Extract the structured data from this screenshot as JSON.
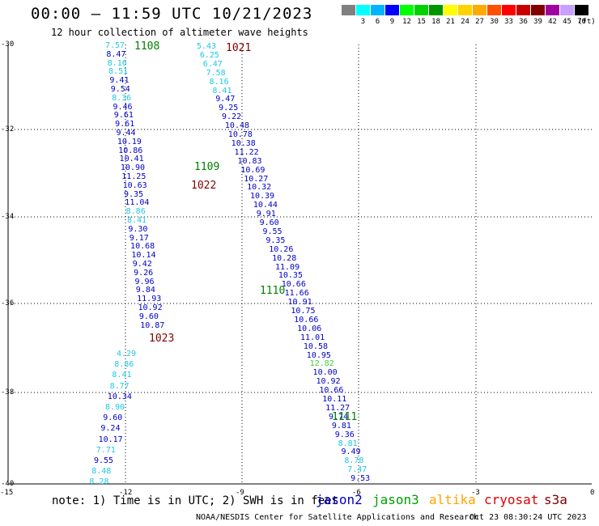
{
  "header": {
    "title": "00:00 – 11:59 UTC 10/21/2023",
    "subtitle": "12 hour collection of altimeter wave heights"
  },
  "legend": {
    "units": "(ft)",
    "bins": [
      {
        "label": "",
        "color": "#808080"
      },
      {
        "label": "3",
        "color": "#00FFFF"
      },
      {
        "label": "6",
        "color": "#00B4FF"
      },
      {
        "label": "9",
        "color": "#0000FF"
      },
      {
        "label": "12",
        "color": "#00FF00"
      },
      {
        "label": "15",
        "color": "#00D200"
      },
      {
        "label": "18",
        "color": "#009600"
      },
      {
        "label": "21",
        "color": "#FFFF00"
      },
      {
        "label": "24",
        "color": "#FFD200"
      },
      {
        "label": "27",
        "color": "#FFAA00"
      },
      {
        "label": "30",
        "color": "#FF5000"
      },
      {
        "label": "33",
        "color": "#FF0000"
      },
      {
        "label": "36",
        "color": "#C80000"
      },
      {
        "label": "39",
        "color": "#800000"
      },
      {
        "label": "42",
        "color": "#A000A0"
      },
      {
        "label": "45",
        "color": "#C8A0FF"
      },
      {
        "label": "70",
        "color": "#000000"
      }
    ]
  },
  "axes": {
    "lat": [
      "-30",
      "-32",
      "-34",
      "-36",
      "-38",
      "-40"
    ],
    "lon": [
      "-15",
      "-12",
      "-9",
      "-6",
      "-3",
      "0"
    ]
  },
  "passes": [
    {
      "label": "1108",
      "color": "#008000"
    },
    {
      "label": "1021",
      "color": "#800000"
    },
    {
      "label": "1109",
      "color": "#008000"
    },
    {
      "label": "1022",
      "color": "#800000"
    },
    {
      "label": "1110",
      "color": "#008000"
    },
    {
      "label": "1023",
      "color": "#800000"
    },
    {
      "label": "1111",
      "color": "#008000"
    }
  ],
  "tracks": {
    "track_a_desc": {
      "values": [
        "7.57",
        "8.47",
        "8.16",
        "8.51",
        "9.41",
        "9.54",
        "8.36",
        "9.46",
        "9.61",
        "9.61",
        "9.44",
        "10.19",
        "10.86",
        "10.41",
        "10.90",
        "11.25",
        "10.63",
        "9.35",
        "11.04",
        "8.86",
        "8.41",
        "9.30",
        "9.17",
        "10.68",
        "10.14",
        "9.42",
        "9.26",
        "9.96",
        "9.84",
        "11.93",
        "10.92",
        "9.60",
        "10.87"
      ],
      "colors": [
        "c",
        "b",
        "c",
        "c",
        "b",
        "b",
        "c",
        "b",
        "b",
        "b",
        "b",
        "b",
        "b",
        "b",
        "b",
        "b",
        "b",
        "b",
        "b",
        "c",
        "c",
        "b",
        "b",
        "b",
        "b",
        "b",
        "b",
        "b",
        "b",
        "b",
        "b",
        "b",
        "b"
      ]
    },
    "track_b_asc": {
      "values": [
        "5.43",
        "6.25",
        "6.47",
        "7.58",
        "8.16",
        "8.41",
        "9.47",
        "9.25",
        "9.22",
        "10.48",
        "10.78",
        "10.38",
        "11.22",
        "10.83",
        "10.69",
        "10.27",
        "10.32",
        "10.39",
        "10.44",
        "9.91",
        "9.60",
        "9.55",
        "9.35",
        "10.26",
        "10.28",
        "11.09",
        "10.35",
        "10.66",
        "11.66",
        "10.91",
        "10.75",
        "10.66",
        "10.06",
        "11.01",
        "10.58",
        "10.95",
        "12.82",
        "10.00",
        "10.92",
        "10.66",
        "10.11",
        "11.27",
        "9.74",
        "9.81",
        "9.36",
        "8.81",
        "9.49",
        "8.78",
        "7.47",
        "9.53"
      ],
      "colors": [
        "c",
        "c",
        "c",
        "c",
        "c",
        "c",
        "b",
        "b",
        "b",
        "b",
        "b",
        "b",
        "b",
        "b",
        "b",
        "b",
        "b",
        "b",
        "b",
        "b",
        "b",
        "b",
        "b",
        "b",
        "b",
        "b",
        "b",
        "b",
        "b",
        "b",
        "b",
        "b",
        "b",
        "b",
        "b",
        "b",
        "g",
        "b",
        "b",
        "b",
        "b",
        "b",
        "b",
        "b",
        "b",
        "c",
        "b",
        "c",
        "c",
        "b"
      ]
    },
    "track_c_desc": {
      "values": [
        "4.29",
        "8.86",
        "8.41",
        "8.77",
        "10.34",
        "8.90",
        "9.60",
        "9.24",
        "10.17",
        "7.71",
        "9.55",
        "8.48",
        "8.28"
      ],
      "colors": [
        "c",
        "c",
        "c",
        "c",
        "b",
        "c",
        "b",
        "b",
        "b",
        "c",
        "b",
        "c",
        "c"
      ]
    }
  },
  "satellites": [
    {
      "name": "jason2",
      "color": "#0000C8"
    },
    {
      "name": "jason3",
      "color": "#00A000"
    },
    {
      "name": "altika",
      "color": "#FFA500"
    },
    {
      "name": "cryosat",
      "color": "#E00000"
    },
    {
      "name": "s3a",
      "color": "#800000"
    }
  ],
  "note": "note: 1) Time is in UTC; 2) SWH is in feet",
  "footer": {
    "credit": "NOAA/NESDIS Center for Satellite Applications and Research",
    "timestamp": "Oct 23 08:30:24 UTC 2023"
  }
}
